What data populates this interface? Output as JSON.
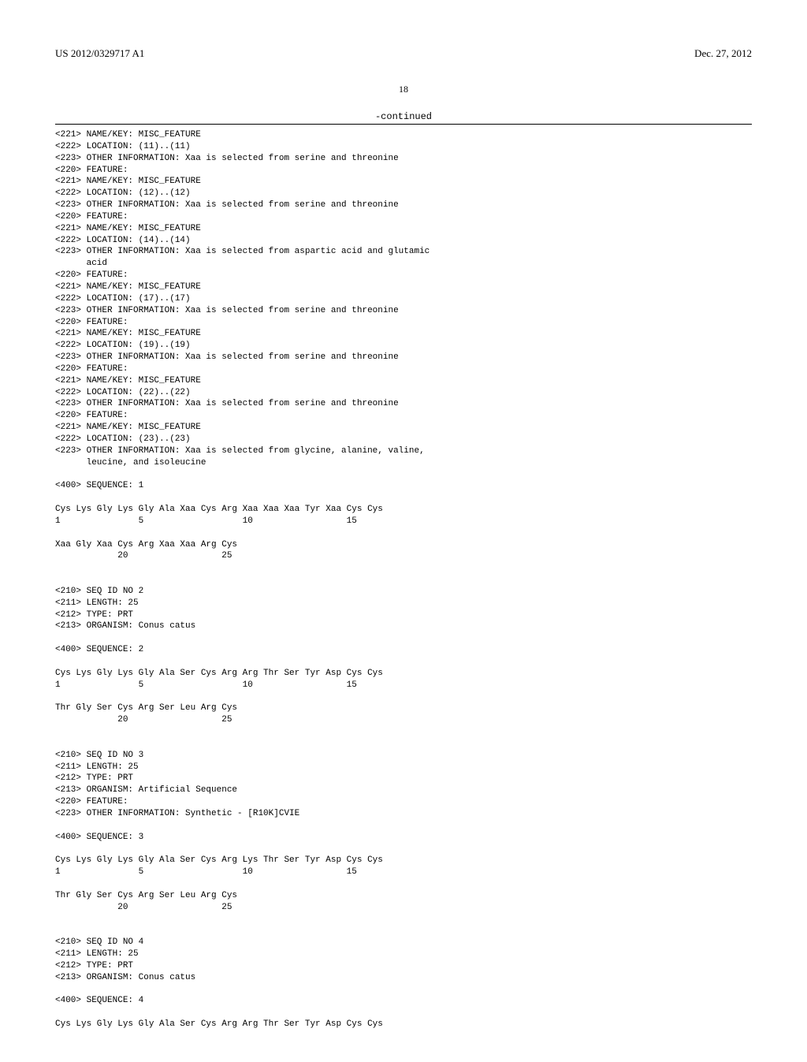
{
  "header": {
    "left": "US 2012/0329717 A1",
    "right": "Dec. 27, 2012"
  },
  "page_number": "18",
  "continued_label": "-continued",
  "body_text": "<221> NAME/KEY: MISC_FEATURE\n<222> LOCATION: (11)..(11)\n<223> OTHER INFORMATION: Xaa is selected from serine and threonine\n<220> FEATURE:\n<221> NAME/KEY: MISC_FEATURE\n<222> LOCATION: (12)..(12)\n<223> OTHER INFORMATION: Xaa is selected from serine and threonine\n<220> FEATURE:\n<221> NAME/KEY: MISC_FEATURE\n<222> LOCATION: (14)..(14)\n<223> OTHER INFORMATION: Xaa is selected from aspartic acid and glutamic\n      acid\n<220> FEATURE:\n<221> NAME/KEY: MISC_FEATURE\n<222> LOCATION: (17)..(17)\n<223> OTHER INFORMATION: Xaa is selected from serine and threonine\n<220> FEATURE:\n<221> NAME/KEY: MISC_FEATURE\n<222> LOCATION: (19)..(19)\n<223> OTHER INFORMATION: Xaa is selected from serine and threonine\n<220> FEATURE:\n<221> NAME/KEY: MISC_FEATURE\n<222> LOCATION: (22)..(22)\n<223> OTHER INFORMATION: Xaa is selected from serine and threonine\n<220> FEATURE:\n<221> NAME/KEY: MISC_FEATURE\n<222> LOCATION: (23)..(23)\n<223> OTHER INFORMATION: Xaa is selected from glycine, alanine, valine,\n      leucine, and isoleucine\n\n<400> SEQUENCE: 1\n\nCys Lys Gly Lys Gly Ala Xaa Cys Arg Xaa Xaa Xaa Tyr Xaa Cys Cys\n1               5                   10                  15\n\nXaa Gly Xaa Cys Arg Xaa Xaa Arg Cys\n            20                  25\n\n\n<210> SEQ ID NO 2\n<211> LENGTH: 25\n<212> TYPE: PRT\n<213> ORGANISM: Conus catus\n\n<400> SEQUENCE: 2\n\nCys Lys Gly Lys Gly Ala Ser Cys Arg Arg Thr Ser Tyr Asp Cys Cys\n1               5                   10                  15\n\nThr Gly Ser Cys Arg Ser Leu Arg Cys\n            20                  25\n\n\n<210> SEQ ID NO 3\n<211> LENGTH: 25\n<212> TYPE: PRT\n<213> ORGANISM: Artificial Sequence\n<220> FEATURE:\n<223> OTHER INFORMATION: Synthetic - [R10K]CVIE\n\n<400> SEQUENCE: 3\n\nCys Lys Gly Lys Gly Ala Ser Cys Arg Lys Thr Ser Tyr Asp Cys Cys\n1               5                   10                  15\n\nThr Gly Ser Cys Arg Ser Leu Arg Cys\n            20                  25\n\n\n<210> SEQ ID NO 4\n<211> LENGTH: 25\n<212> TYPE: PRT\n<213> ORGANISM: Conus catus\n\n<400> SEQUENCE: 4\n\nCys Lys Gly Lys Gly Ala Ser Cys Arg Arg Thr Ser Tyr Asp Cys Cys"
}
